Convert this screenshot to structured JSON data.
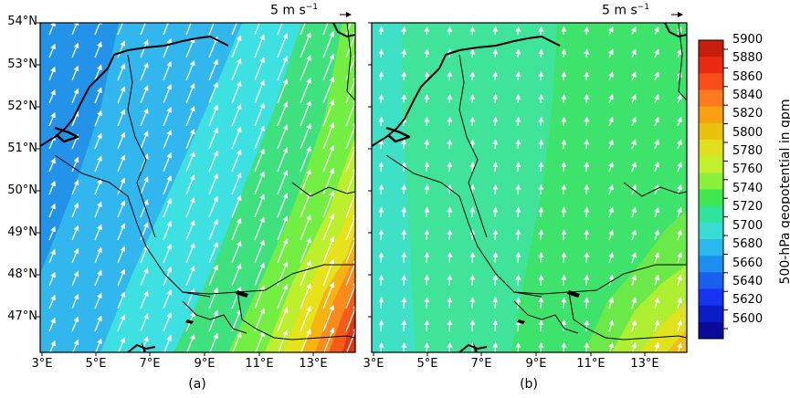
{
  "panels": [
    {
      "id": "a",
      "caption": "(a)",
      "scale_label": "5 m s",
      "scale_exp": "−1"
    },
    {
      "id": "b",
      "caption": "(b)",
      "scale_label": "5 m s",
      "scale_exp": "−1"
    }
  ],
  "lat_labels": [
    "54°N",
    "53°N",
    "52°N",
    "51°N",
    "50°N",
    "49°N",
    "48°N",
    "47°N"
  ],
  "lon_labels": [
    "3°E",
    "5°E",
    "7°E",
    "9°E",
    "11°E",
    "13°E"
  ],
  "colorbar": {
    "title": "500-hPa geopotential in gpm",
    "ticks": [
      "5900",
      "5880",
      "5860",
      "5840",
      "5820",
      "5800",
      "5780",
      "5760",
      "5740",
      "5720",
      "5700",
      "5680",
      "5660",
      "5640",
      "5620",
      "5600"
    ],
    "colors": [
      "#c81c0c",
      "#ec2a14",
      "#fb4c1c",
      "#fd7a1e",
      "#f6a012",
      "#eac20c",
      "#e0e01e",
      "#c3ef2c",
      "#8af03c",
      "#3ee84e",
      "#30e39a",
      "#38dcd2",
      "#2ab9ee",
      "#1e8ff0",
      "#1b5ff0",
      "#1634f2",
      "#0d1cc9",
      "#0b0b9a"
    ]
  },
  "map_colors": {
    "a": {
      "c5680": "#2293e8",
      "c5700": "#31b7ed",
      "c5720": "#3ee1e1",
      "c5740": "#3fe17e",
      "c5760": "#73ef43",
      "c5780": "#bcef2c",
      "c5800": "#e6e21c",
      "c5820": "#f5b412",
      "c5840": "#fc8a1c",
      "c5860": "#f55a18",
      "c5880": "#e23416"
    },
    "b": {
      "c5720": "#3fe1c6",
      "c5730": "#3fe39a",
      "c5740": "#3ee36c",
      "c5760": "#6ae949",
      "c5780": "#aeef31",
      "c5800": "#e0e31c",
      "c5820": "#f5bc14"
    }
  }
}
